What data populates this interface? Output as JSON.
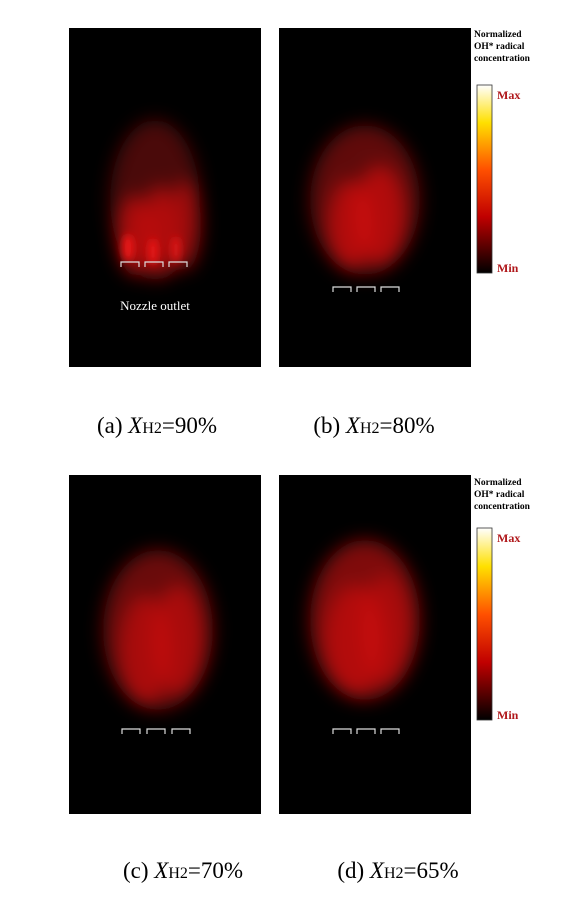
{
  "panels": [
    {
      "label": "(a)",
      "symbol": "X",
      "subscript": "H2",
      "value": "=90%"
    },
    {
      "label": "(b)",
      "symbol": "X",
      "subscript": "H2",
      "value": "=80%"
    },
    {
      "label": "(c)",
      "symbol": "X",
      "subscript": "H2",
      "value": "=70%"
    },
    {
      "label": "(d)",
      "symbol": "X",
      "subscript": "H2",
      "value": "=65%"
    }
  ],
  "annotation": "Nozzle outlet",
  "colorbar": {
    "title_lines": [
      "Normalized",
      "OH* radical",
      "concentration"
    ],
    "max": "Max",
    "min": "Min"
  }
}
